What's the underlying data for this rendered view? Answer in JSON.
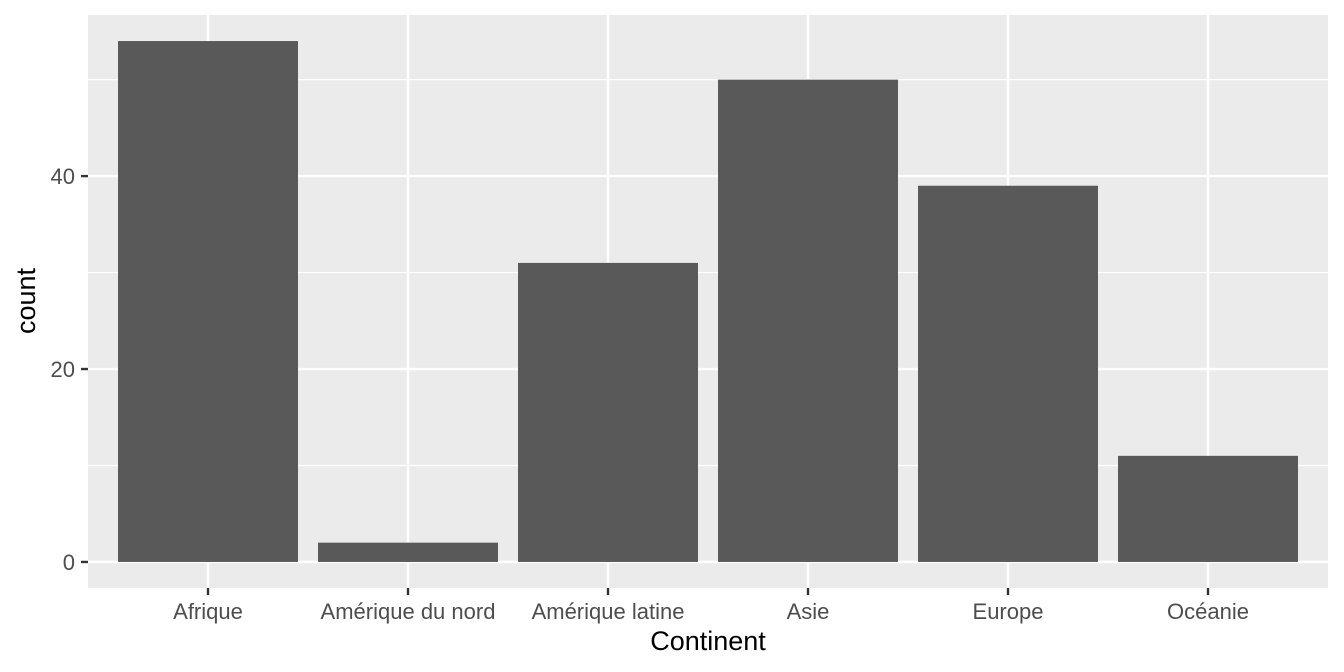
{
  "chart_data": {
    "type": "bar",
    "title": "",
    "xlabel": "Continent",
    "ylabel": "count",
    "categories": [
      "Afrique",
      "Amérique du nord",
      "Amérique latine",
      "Asie",
      "Europe",
      "Océanie"
    ],
    "values": [
      54,
      2,
      31,
      50,
      39,
      11
    ],
    "ylim": [
      -2.7,
      56.7
    ],
    "y_ticks": [
      0,
      20,
      40
    ],
    "y_tick_labels": [
      "0",
      "20",
      "40"
    ],
    "y_minor_ticks": [
      10,
      30,
      50
    ],
    "grid": true,
    "legend": "none",
    "colors": {
      "panel_background": "#ebebeb",
      "grid": "#ffffff",
      "bar_fill": "#595959",
      "tick": "#333333"
    }
  }
}
